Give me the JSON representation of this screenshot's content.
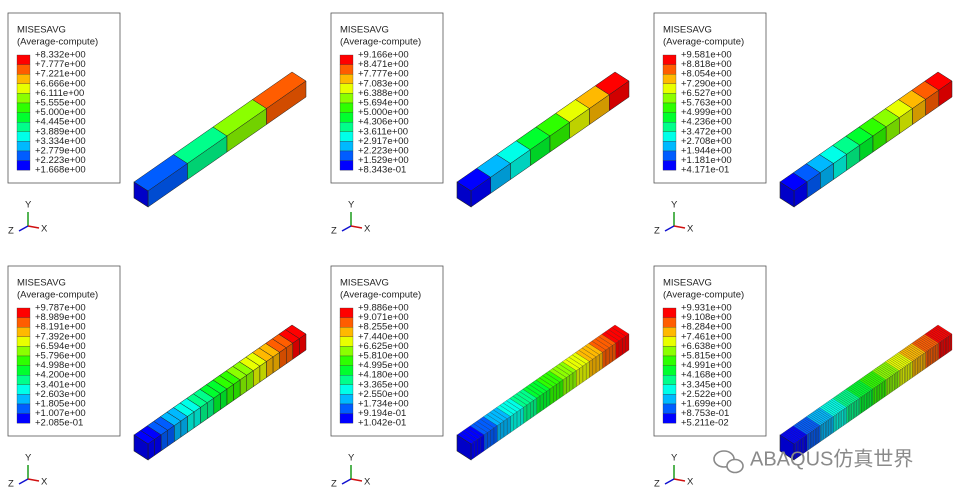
{
  "panels": [
    {
      "legend": {
        "title": "MISESAVG",
        "subtitle": "(Average-compute)",
        "labels": [
          "+8.332e+00",
          "+7.777e+00",
          "+7.221e+00",
          "+6.666e+00",
          "+6.111e+00",
          "+5.555e+00",
          "+5.000e+00",
          "+4.445e+00",
          "+3.889e+00",
          "+3.334e+00",
          "+2.779e+00",
          "+2.223e+00",
          "+1.668e+00"
        ]
      },
      "triad": {
        "y": "Y",
        "z": "Z",
        "x": "X"
      }
    },
    {
      "legend": {
        "title": "MISESAVG",
        "subtitle": "(Average-compute)",
        "labels": [
          "+9.166e+00",
          "+8.471e+00",
          "+7.777e+00",
          "+7.083e+00",
          "+6.388e+00",
          "+5.694e+00",
          "+5.000e+00",
          "+4.306e+00",
          "+3.611e+00",
          "+2.917e+00",
          "+2.223e+00",
          "+1.529e+00",
          "+8.343e-01"
        ]
      },
      "triad": {
        "y": "Y",
        "z": "Z",
        "x": "X"
      }
    },
    {
      "legend": {
        "title": "MISESAVG",
        "subtitle": "(Average-compute)",
        "labels": [
          "+9.581e+00",
          "+8.818e+00",
          "+8.054e+00",
          "+7.290e+00",
          "+6.527e+00",
          "+5.763e+00",
          "+4.999e+00",
          "+4.236e+00",
          "+3.472e+00",
          "+2.708e+00",
          "+1.944e+00",
          "+1.181e+00",
          "+4.171e-01"
        ]
      },
      "triad": {
        "y": "Y",
        "z": "Z",
        "x": "X"
      }
    },
    {
      "legend": {
        "title": "MISESAVG",
        "subtitle": "(Average-compute)",
        "labels": [
          "+9.787e+00",
          "+8.989e+00",
          "+8.191e+00",
          "+7.392e+00",
          "+6.594e+00",
          "+5.796e+00",
          "+4.998e+00",
          "+4.200e+00",
          "+3.401e+00",
          "+2.603e+00",
          "+1.805e+00",
          "+1.007e+00",
          "+2.085e-01"
        ]
      },
      "triad": {
        "y": "Y",
        "z": "Z",
        "x": "X"
      }
    },
    {
      "legend": {
        "title": "MISESAVG",
        "subtitle": "(Average-compute)",
        "labels": [
          "+9.886e+00",
          "+9.071e+00",
          "+8.255e+00",
          "+7.440e+00",
          "+6.625e+00",
          "+5.810e+00",
          "+4.995e+00",
          "+4.180e+00",
          "+3.365e+00",
          "+2.550e+00",
          "+1.734e+00",
          "+9.194e-01",
          "+1.042e-01"
        ]
      },
      "triad": {
        "y": "Y",
        "z": "Z",
        "x": "X"
      }
    },
    {
      "legend": {
        "title": "MISESAVG",
        "subtitle": "(Average-compute)",
        "labels": [
          "+9.931e+00",
          "+9.108e+00",
          "+8.284e+00",
          "+7.461e+00",
          "+6.638e+00",
          "+5.815e+00",
          "+4.991e+00",
          "+4.168e+00",
          "+3.345e+00",
          "+2.522e+00",
          "+1.699e+00",
          "+8.753e-01",
          "+5.211e-02"
        ]
      },
      "triad": {
        "y": "Y",
        "z": "Z",
        "x": "X"
      }
    }
  ],
  "watermark": "ABAQUS仿真世界"
}
